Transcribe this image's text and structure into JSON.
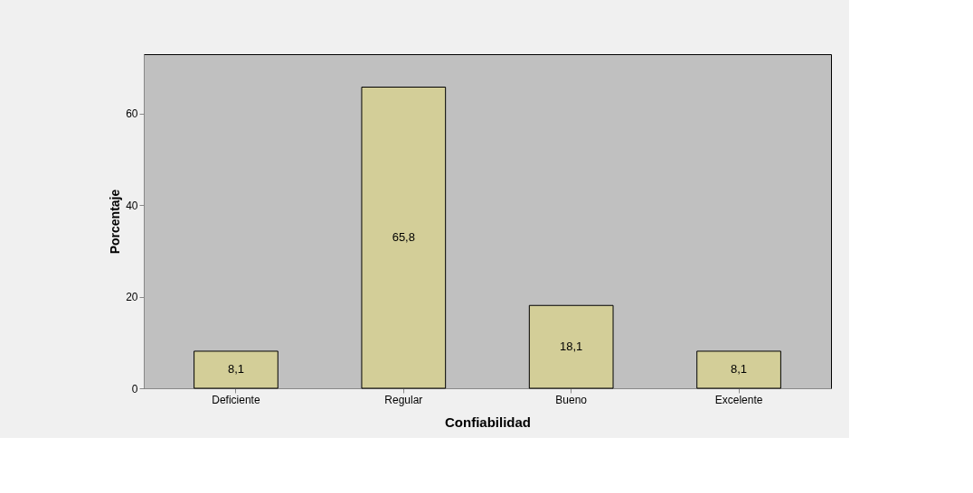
{
  "chart_data": {
    "type": "bar",
    "xlabel": "Confiabilidad",
    "ylabel": "Porcentaje",
    "categories": [
      "Deficiente",
      "Regular",
      "Bueno",
      "Excelente"
    ],
    "values": [
      8.1,
      65.8,
      18.1,
      8.1
    ],
    "value_labels": [
      "8,1",
      "65,8",
      "18,1",
      "8,1"
    ],
    "color": "#d3ce98",
    "ylim": [
      0,
      73
    ],
    "yticks": [
      0,
      20,
      40,
      60
    ],
    "grid": false
  }
}
